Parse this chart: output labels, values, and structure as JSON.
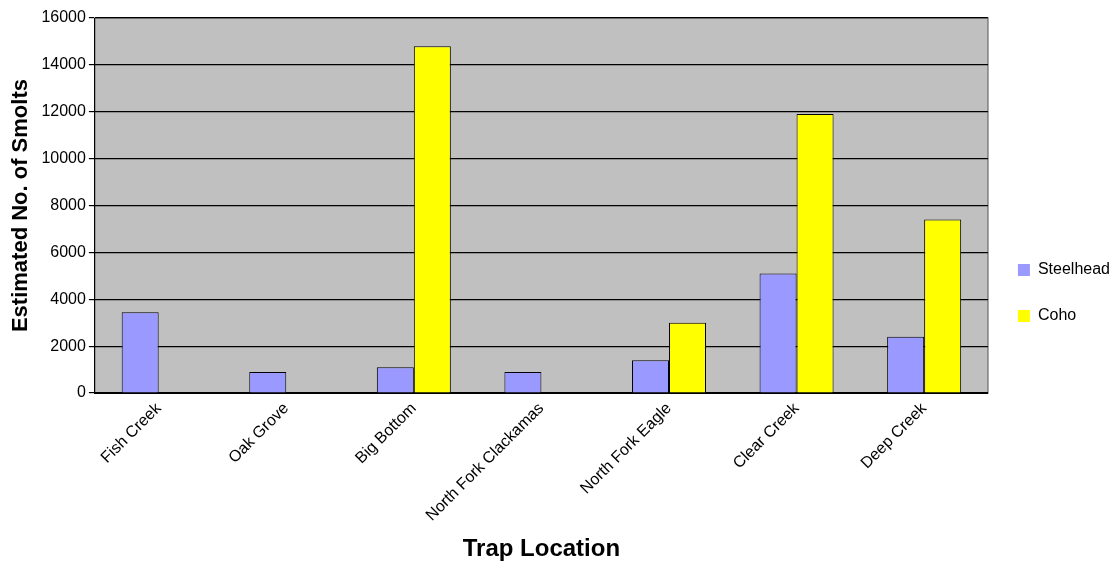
{
  "chart_data": {
    "type": "bar",
    "xlabel": "Trap Location",
    "ylabel": "Estimated No. of Smolts",
    "categories": [
      "Fish Creek",
      "Oak Grove",
      "Big Bottom",
      "North Fork Clackamas",
      "North Fork Eagle",
      "Clear Creek",
      "Deep Creek"
    ],
    "series": [
      {
        "name": "Steelhead",
        "color": "#9999ff",
        "values": [
          3450,
          900,
          1100,
          900,
          1400,
          5100,
          2400
        ]
      },
      {
        "name": "Coho",
        "color": "#ffff00",
        "values": [
          null,
          null,
          14800,
          null,
          3000,
          11900,
          7400
        ]
      }
    ],
    "ylim": [
      0,
      16000
    ],
    "yticks": [
      0,
      2000,
      4000,
      6000,
      8000,
      10000,
      12000,
      14000,
      16000
    ],
    "grid": "y",
    "legend": "right"
  }
}
